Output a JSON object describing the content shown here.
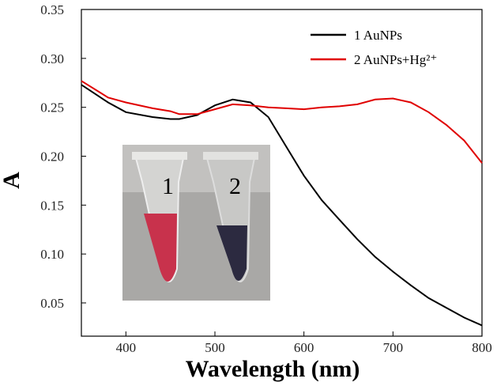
{
  "chart_data": {
    "type": "line",
    "xlabel": "Wavelength (nm)",
    "ylabel": "A",
    "x": [
      350,
      380,
      400,
      430,
      450,
      460,
      480,
      500,
      520,
      540,
      560,
      580,
      600,
      620,
      640,
      660,
      680,
      700,
      720,
      740,
      760,
      780,
      800
    ],
    "series": [
      {
        "name": "1  AuNPs",
        "color": "#000000",
        "values": [
          0.273,
          0.255,
          0.245,
          0.24,
          0.238,
          0.238,
          0.242,
          0.252,
          0.258,
          0.255,
          0.24,
          0.21,
          0.18,
          0.155,
          0.135,
          0.115,
          0.097,
          0.082,
          0.068,
          0.055,
          0.045,
          0.035,
          0.027
        ]
      },
      {
        "name": "2  AuNPs+Hg²⁺",
        "color": "#e00000",
        "values": [
          0.277,
          0.26,
          0.255,
          0.249,
          0.246,
          0.243,
          0.243,
          0.248,
          0.253,
          0.252,
          0.25,
          0.249,
          0.248,
          0.25,
          0.251,
          0.253,
          0.258,
          0.259,
          0.255,
          0.245,
          0.232,
          0.216,
          0.193
        ]
      }
    ],
    "xlim": [
      350,
      800
    ],
    "xticks": [
      400,
      500,
      600,
      700,
      800
    ],
    "ylim": [
      0.016,
      0.35
    ],
    "yticks": [
      0.05,
      {
        "value": 0.1,
        "label": "0.10"
      },
      0.15,
      {
        "value": 0.2,
        "label": "0.20"
      },
      0.25,
      {
        "value": 0.3,
        "label": "0.30"
      },
      0.35
    ],
    "legend": "upper right",
    "inset_labels": [
      "1",
      "2"
    ]
  }
}
